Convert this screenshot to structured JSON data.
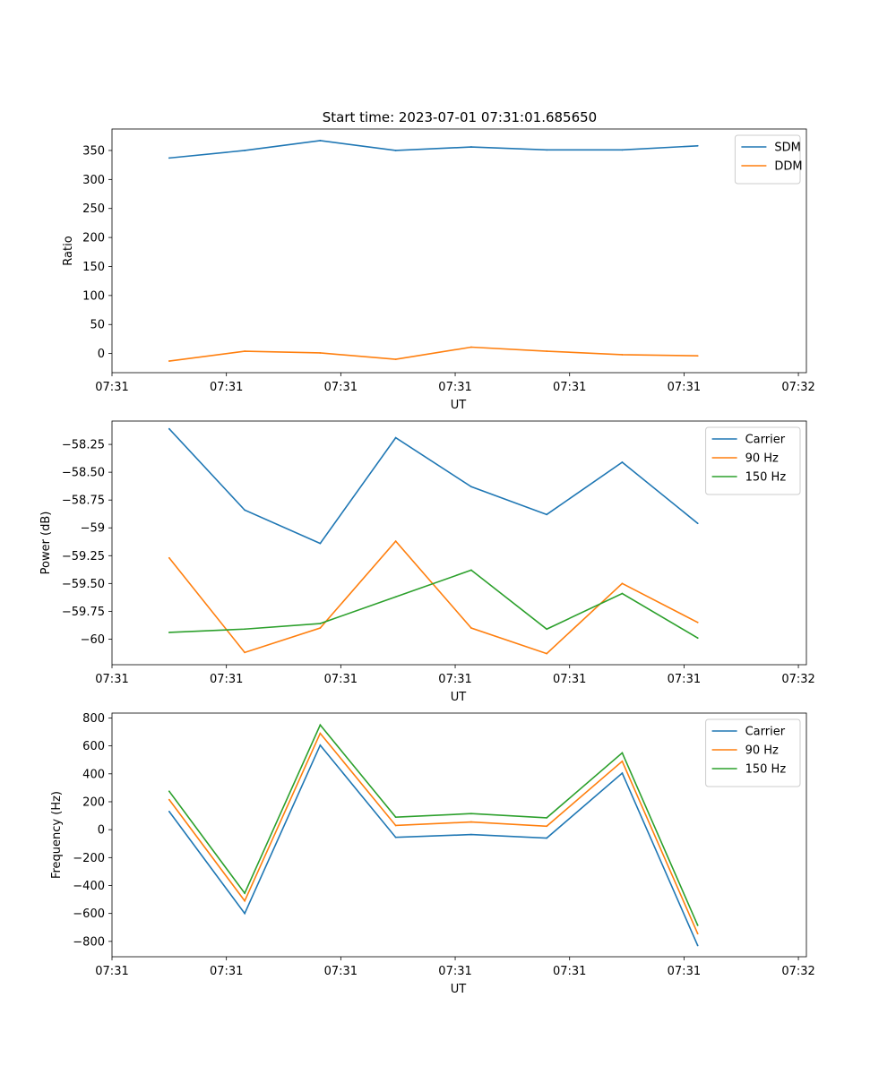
{
  "figure_title": "Start time: 2023-07-01 07:31:01.685650",
  "colors": {
    "blue": "#1f77b4",
    "orange": "#ff7f0e",
    "green": "#2ca02c"
  },
  "chart_data": [
    {
      "type": "line",
      "xlabel": "UT",
      "ylabel": "Ratio",
      "xticks": [
        "07:31",
        "07:31",
        "07:31",
        "07:31",
        "07:31",
        "07:31",
        "07:32"
      ],
      "xlim": [
        0,
        6.07
      ],
      "x": [
        0.5,
        1.16,
        1.82,
        2.48,
        3.14,
        3.8,
        4.46,
        5.12
      ],
      "ylim": [
        -33,
        387
      ],
      "yticks": [
        0,
        50,
        100,
        150,
        200,
        250,
        300,
        350
      ],
      "legend": "top-right",
      "series": [
        {
          "name": "SDM",
          "color": "#1f77b4",
          "values": [
            337,
            350,
            367,
            350,
            356,
            351,
            351,
            358
          ]
        },
        {
          "name": "DDM",
          "color": "#ff7f0e",
          "values": [
            -13,
            4,
            1,
            -10,
            11,
            4,
            -2,
            -4
          ]
        }
      ]
    },
    {
      "type": "line",
      "xlabel": "UT",
      "ylabel": "Power (dB)",
      "xticks": [
        "07:31",
        "07:31",
        "07:31",
        "07:31",
        "07:31",
        "07:31",
        "07:32"
      ],
      "xlim": [
        0,
        6.07
      ],
      "x": [
        0.5,
        1.16,
        1.82,
        2.48,
        3.14,
        3.8,
        4.46,
        5.12
      ],
      "ylim": [
        -60.23,
        -58.04
      ],
      "yticks": [
        -60.0,
        -59.75,
        -59.5,
        -59.25,
        -59.0,
        -58.75,
        -58.5,
        -58.25
      ],
      "legend": "top-right",
      "series": [
        {
          "name": "Carrier",
          "color": "#1f77b4",
          "values": [
            -58.11,
            -58.84,
            -59.14,
            -58.19,
            -58.63,
            -58.88,
            -58.41,
            -58.96
          ]
        },
        {
          "name": "90 Hz",
          "color": "#ff7f0e",
          "values": [
            -59.27,
            -60.12,
            -59.9,
            -59.12,
            -59.9,
            -60.13,
            -59.5,
            -59.85
          ]
        },
        {
          "name": "150 Hz",
          "color": "#2ca02c",
          "values": [
            -59.94,
            -59.91,
            -59.86,
            -59.62,
            -59.38,
            -59.91,
            -59.59,
            -59.99
          ]
        }
      ]
    },
    {
      "type": "line",
      "xlabel": "UT",
      "ylabel": "Frequency (Hz)",
      "xticks": [
        "07:31",
        "07:31",
        "07:31",
        "07:31",
        "07:31",
        "07:31",
        "07:32"
      ],
      "xlim": [
        0,
        6.07
      ],
      "x": [
        0.5,
        1.16,
        1.82,
        2.48,
        3.14,
        3.8,
        4.46,
        5.12
      ],
      "ylim": [
        -910,
        835
      ],
      "yticks": [
        -800,
        -600,
        -400,
        -200,
        0,
        200,
        400,
        600,
        800
      ],
      "legend": "top-right",
      "series": [
        {
          "name": "Carrier",
          "color": "#1f77b4",
          "values": [
            130,
            -600,
            605,
            -55,
            -35,
            -60,
            405,
            -830
          ]
        },
        {
          "name": "90 Hz",
          "color": "#ff7f0e",
          "values": [
            215,
            -510,
            690,
            30,
            55,
            25,
            490,
            -745
          ]
        },
        {
          "name": "150 Hz",
          "color": "#2ca02c",
          "values": [
            275,
            -455,
            750,
            90,
            115,
            85,
            550,
            -685
          ]
        }
      ]
    }
  ]
}
